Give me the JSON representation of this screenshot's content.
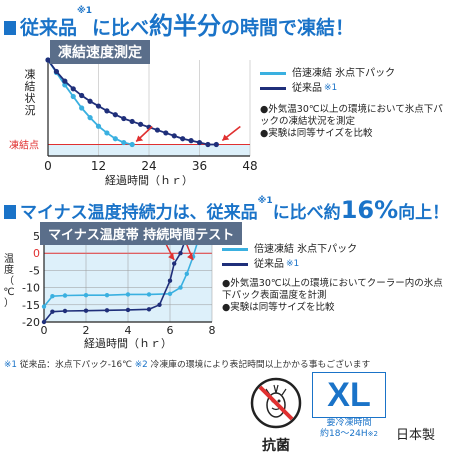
{
  "header1": {
    "part1": "従来品",
    "sup1": "※1",
    "part2": "に比べ",
    "emph": "約半分",
    "part3": "の時間で凍結！"
  },
  "header2": {
    "part1": "マイナス温度持続力は、従来品",
    "sup1": "※1",
    "part2": "に比べ約",
    "emph": "16%",
    "part3": "向上！"
  },
  "colors": {
    "accent": "#1a73c8",
    "light_series": "#3ab0e0",
    "dark_series": "#1f2f7a",
    "panel_bg": "#ddf0fa",
    "arrow": "#e03030"
  },
  "chart_data": [
    {
      "type": "line",
      "title": "凍結速度測定",
      "ylabel": "凍結状況",
      "xlabel": "経過時間（ｈｒ）",
      "x_ticks": [
        "0",
        "12",
        "24",
        "36",
        "48"
      ],
      "xlim": [
        0,
        48
      ],
      "freeze_label": "凍結点",
      "series": [
        {
          "name": "倍速凍結 氷点下パック",
          "color": "#3ab0e0",
          "x": [
            0,
            2,
            4,
            6,
            8,
            10,
            12,
            14,
            16,
            18,
            20
          ],
          "y": [
            100,
            87,
            74,
            62,
            50,
            40,
            31,
            24,
            18,
            14,
            12
          ]
        },
        {
          "name": "従来品",
          "sup": "※1",
          "color": "#1f2f7a",
          "x": [
            0,
            2,
            4,
            6,
            8,
            10,
            12,
            14,
            16,
            18,
            20,
            22,
            24,
            26,
            28,
            30,
            32,
            34,
            36,
            38,
            40
          ],
          "y": [
            100,
            88,
            78,
            70,
            63,
            57,
            52,
            47,
            43,
            39,
            36,
            33,
            30,
            27,
            24,
            21,
            18,
            16,
            14,
            12,
            12
          ]
        }
      ],
      "notes": [
        "●外気温30℃以上の環境において氷点下パックの凍結状況を測定",
        "●実験は同等サイズを比較"
      ]
    },
    {
      "type": "line",
      "title": "マイナス温度帯 持続時間テスト",
      "ylabel": "温度（℃）",
      "xlabel": "経過時間（ｈｒ）",
      "y_ticks": [
        "5",
        "0",
        "-5",
        "-10",
        "-15",
        "-20"
      ],
      "ylim": [
        -20,
        5
      ],
      "x_ticks": [
        "0",
        "2",
        "4",
        "6",
        "8"
      ],
      "xlim": [
        0,
        8
      ],
      "series": [
        {
          "name": "倍速凍結 氷点下パック",
          "color": "#3ab0e0",
          "x": [
            0,
            0.4,
            1,
            2,
            3,
            4,
            5,
            6,
            6.5,
            6.8,
            7.1,
            7.4
          ],
          "y": [
            -15.5,
            -12.5,
            -12.3,
            -12.2,
            -12.2,
            -12.0,
            -12.0,
            -11.8,
            -10,
            -6,
            -1,
            5
          ]
        },
        {
          "name": "従来品",
          "sup": "※1",
          "color": "#1f2f7a",
          "x": [
            0,
            0.4,
            1,
            2,
            3,
            4,
            5,
            5.5,
            6,
            6.2,
            6.5,
            6.8
          ],
          "y": [
            -20,
            -17,
            -16.8,
            -16.7,
            -16.6,
            -16.5,
            -16.3,
            -15,
            -8,
            -3,
            0,
            5
          ]
        }
      ],
      "notes": [
        "●外気温30℃以上の環境においてクーラー内の氷点下パック表面温度を計測",
        "●実験は同等サイズを比較"
      ]
    }
  ],
  "footnote": {
    "m1": "※1",
    "t1": "従来品：氷点下パック-16℃",
    "m2": "※2",
    "t2": "冷凍庫の環境により表記時間以上かかる事もございます"
  },
  "badge": {
    "antibacterial": "抗菌"
  },
  "size": {
    "label": "XL",
    "freeze_time_label": "要冷凍時間",
    "freeze_time": "約18～24H",
    "sup": "※2"
  },
  "origin": "日本製"
}
